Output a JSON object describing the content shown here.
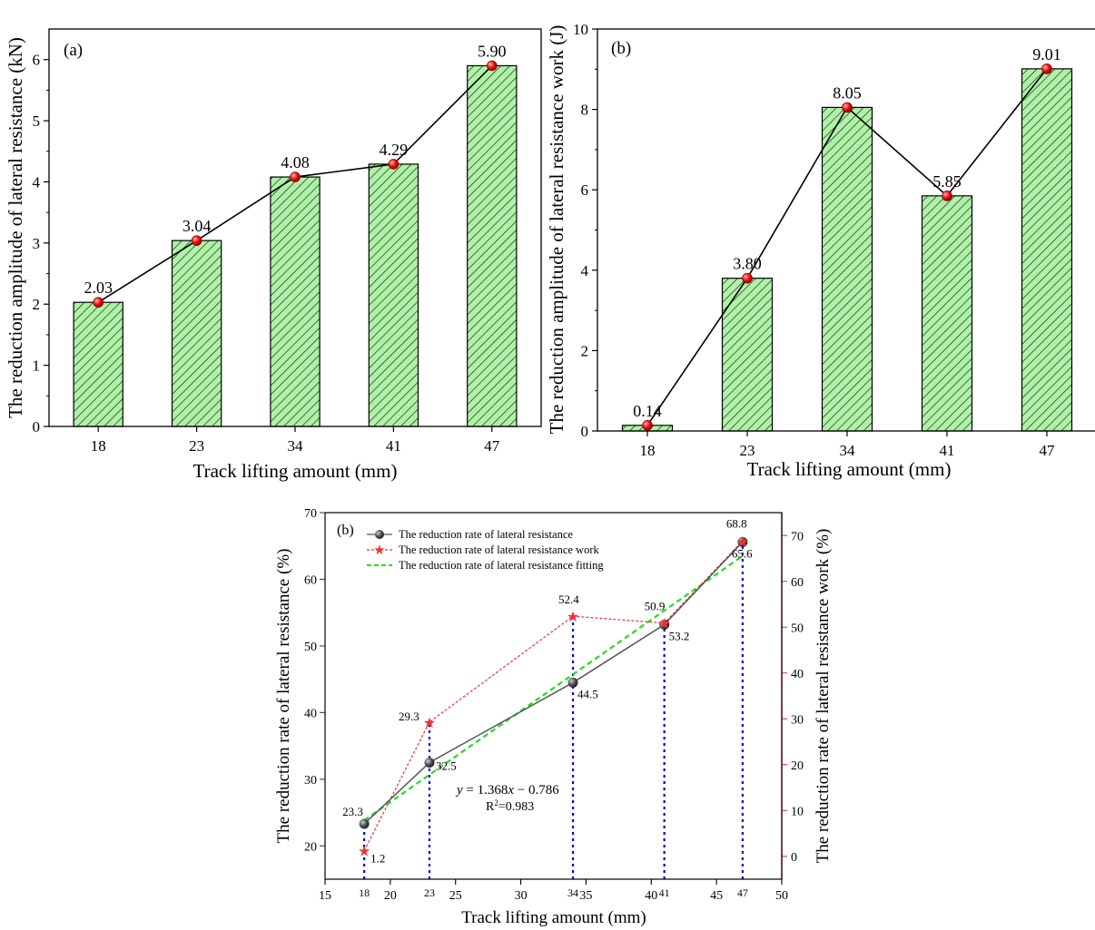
{
  "chart_data": [
    {
      "type": "bar",
      "panel_label": "(a)",
      "categories": [
        "18",
        "23",
        "34",
        "41",
        "47"
      ],
      "values": [
        2.03,
        3.04,
        4.08,
        4.29,
        5.9
      ],
      "value_labels": [
        "2.03",
        "3.04",
        "4.08",
        "4.29",
        "5.90"
      ],
      "xlabel": "Track lifting amount (mm)",
      "ylabel": "The reduction amplitude of lateral resistance (kN)",
      "ylim": [
        0,
        6.5
      ],
      "yticks": [
        "0",
        "1",
        "2",
        "3",
        "4",
        "5",
        "6"
      ],
      "overlay": "line-with-markers",
      "bar_fill": "#aef2a6",
      "hatch_color": "#1a1a1a",
      "marker_color": "#ee1111"
    },
    {
      "type": "bar",
      "panel_label": "(b)",
      "categories": [
        "18",
        "23",
        "34",
        "41",
        "47"
      ],
      "values": [
        0.14,
        3.8,
        8.05,
        5.85,
        9.01
      ],
      "value_labels": [
        "0.14",
        "3.80",
        "8.05",
        "5.85",
        "9.01"
      ],
      "xlabel": "Track lifting amount (mm)",
      "ylabel": "The reduction amplitude of lateral resistance work (J)",
      "ylim": [
        0,
        10
      ],
      "yticks": [
        "0",
        "2",
        "4",
        "6",
        "8",
        "10"
      ],
      "overlay": "line-with-markers",
      "bar_fill": "#aef2a6",
      "hatch_color": "#1a1a1a",
      "marker_color": "#ee1111"
    },
    {
      "type": "line",
      "panel_label": "(b)",
      "xlabel": "Track lifting amount (mm)",
      "ylabel": "The reduction rate of lateral resistance (%)",
      "ylabel_right": "The reduction rate of lateral resistance work (%)",
      "xlim": [
        15,
        50
      ],
      "ylim": [
        15,
        70
      ],
      "ylim_right": [
        -5,
        75
      ],
      "xticks": [
        "15",
        "20",
        "25",
        "30",
        "35",
        "40",
        "45",
        "50"
      ],
      "yticks": [
        "20",
        "30",
        "40",
        "50",
        "60",
        "70"
      ],
      "yticks_right": [
        "0",
        "10",
        "20",
        "30",
        "40",
        "50",
        "60",
        "70"
      ],
      "marked_x": [
        "18",
        "23",
        "34",
        "41",
        "47"
      ],
      "series": [
        {
          "name": "The reduction rate of lateral resistance",
          "axis": "left",
          "x": [
            18,
            23,
            34,
            41,
            47
          ],
          "y": [
            23.3,
            32.5,
            44.5,
            53.2,
            65.6
          ],
          "labels": [
            "23.3",
            "32.5",
            "44.5",
            "53.2",
            "65.6"
          ],
          "color": "#555555"
        },
        {
          "name": "The reduction rate of lateral resistance work",
          "axis": "right",
          "x": [
            18,
            23,
            34,
            41,
            47
          ],
          "y": [
            1.2,
            29.3,
            52.4,
            50.9,
            68.8
          ],
          "labels": [
            "1.2",
            "29.3",
            "52.4",
            "50.9",
            "68.8"
          ],
          "color": "#ee3333"
        },
        {
          "name": "The reduction rate of lateral resistance fitting",
          "axis": "left",
          "slope": 1.368,
          "intercept": -0.786,
          "x_range": [
            18,
            47
          ],
          "color": "#22dd22"
        }
      ],
      "equation": {
        "prefix": "y",
        "body": " = 1.368",
        "var": "x",
        "rest": " − 0.786",
        "r2_label": "R",
        "r2_sup": "2",
        "r2_value": "=0.983"
      },
      "left_axis_color": "#444444",
      "right_axis_color": "#ee3333",
      "marker_line_color": "#0000ee"
    }
  ]
}
